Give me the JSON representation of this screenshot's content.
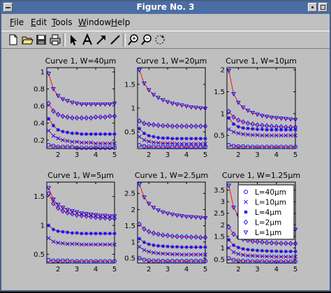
{
  "window": {
    "title": "Figure No. 3"
  },
  "menu": [
    {
      "label": "File",
      "underline": "F"
    },
    {
      "label": "Edit",
      "underline": "E"
    },
    {
      "label": "Tools",
      "underline": "T"
    },
    {
      "label": "Window",
      "underline": "W"
    },
    {
      "label": "Help",
      "underline": "H"
    }
  ],
  "toolbar": [
    "new-file-icon",
    "open-folder-icon",
    "save-icon",
    "print-icon",
    "pointer-arrow-icon",
    "text-icon",
    "arrow-icon",
    "line-icon",
    "zoom-in-icon",
    "zoom-out-icon",
    "rotate-icon"
  ],
  "colors": {
    "fit_line": "#ff0000",
    "markers": "#0000ff",
    "background": "#bfbfbf"
  },
  "legend": {
    "entries": [
      {
        "label": "L=40μm",
        "marker": "o"
      },
      {
        "label": "L=10μm",
        "marker": "x"
      },
      {
        "label": "L=4μm",
        "marker": "*"
      },
      {
        "label": "L=2μm",
        "marker": "diamond"
      },
      {
        "label": "L=1μm",
        "marker": "triangle-down"
      }
    ],
    "placement": "top-right"
  },
  "chart_data": [
    {
      "type": "line",
      "title": "Curve 1, W=40μm",
      "xlim": [
        1.4,
        5
      ],
      "ylim": [
        0.1,
        1.05
      ],
      "xticks": [
        2,
        3,
        4,
        5
      ],
      "yticks": [
        0.2,
        0.4,
        0.6,
        0.8,
        1
      ],
      "ytick_labels": [
        "0.2",
        "0.4",
        "0.6",
        "0.8",
        "1"
      ],
      "x": [
        1.5,
        1.75,
        2,
        2.25,
        2.5,
        2.75,
        3,
        3.25,
        3.5,
        3.75,
        4,
        4.25,
        4.5,
        4.75,
        5
      ],
      "series": [
        {
          "name": "L=40μm",
          "values": [
            0.14,
            0.13,
            0.12,
            0.12,
            0.12,
            0.12,
            0.11,
            0.11,
            0.11,
            0.11,
            0.11,
            0.11,
            0.11,
            0.11,
            0.11
          ]
        },
        {
          "name": "L=10μm",
          "values": [
            0.31,
            0.25,
            0.22,
            0.2,
            0.19,
            0.18,
            0.18,
            0.17,
            0.17,
            0.17,
            0.16,
            0.16,
            0.16,
            0.16,
            0.16
          ]
        },
        {
          "name": "L=4μm",
          "values": [
            0.45,
            0.37,
            0.32,
            0.3,
            0.29,
            0.28,
            0.28,
            0.27,
            0.27,
            0.27,
            0.27,
            0.27,
            0.27,
            0.27,
            0.27
          ]
        },
        {
          "name": "L=2μm",
          "values": [
            0.63,
            0.54,
            0.5,
            0.48,
            0.47,
            0.46,
            0.46,
            0.46,
            0.46,
            0.46,
            0.47,
            0.47,
            0.47,
            0.48,
            0.48
          ]
        },
        {
          "name": "L=1μm",
          "values": [
            0.98,
            0.8,
            0.72,
            0.68,
            0.66,
            0.64,
            0.63,
            0.62,
            0.62,
            0.62,
            0.62,
            0.62,
            0.62,
            0.62,
            0.63
          ]
        }
      ]
    },
    {
      "type": "line",
      "title": "Curve 1, W=20μm",
      "xlim": [
        1.4,
        5
      ],
      "ylim": [
        0.15,
        1.85
      ],
      "xticks": [
        2,
        3,
        4,
        5
      ],
      "yticks": [
        0.5,
        1,
        1.5
      ],
      "ytick_labels": [
        "0.5",
        "1",
        "1.5"
      ],
      "x": [
        1.5,
        1.75,
        2,
        2.25,
        2.5,
        2.75,
        3,
        3.25,
        3.5,
        3.75,
        4,
        4.25,
        4.5,
        4.75,
        5
      ],
      "series": [
        {
          "name": "L=40μm",
          "values": [
            0.22,
            0.2,
            0.19,
            0.19,
            0.18,
            0.18,
            0.18,
            0.18,
            0.18,
            0.18,
            0.18,
            0.18,
            0.18,
            0.18,
            0.18
          ]
        },
        {
          "name": "L=10μm",
          "values": [
            0.4,
            0.33,
            0.3,
            0.28,
            0.27,
            0.26,
            0.26,
            0.26,
            0.25,
            0.25,
            0.25,
            0.25,
            0.25,
            0.25,
            0.25
          ]
        },
        {
          "name": "L=4μm",
          "values": [
            0.57,
            0.47,
            0.42,
            0.4,
            0.38,
            0.37,
            0.37,
            0.36,
            0.36,
            0.36,
            0.36,
            0.36,
            0.36,
            0.36,
            0.36
          ]
        },
        {
          "name": "L=2μm",
          "values": [
            0.73,
            0.68,
            0.66,
            0.65,
            0.64,
            0.63,
            0.63,
            0.62,
            0.62,
            0.62,
            0.62,
            0.62,
            0.62,
            0.62,
            0.62
          ]
        },
        {
          "name": "L=1μm",
          "values": [
            1.8,
            1.52,
            1.38,
            1.28,
            1.22,
            1.17,
            1.13,
            1.1,
            1.08,
            1.06,
            1.04,
            1.02,
            1.01,
            1.0,
            0.99
          ]
        }
      ]
    },
    {
      "type": "line",
      "title": "Curve 1, W=10μm",
      "xlim": [
        1.4,
        5
      ],
      "ylim": [
        0.2,
        2.05
      ],
      "xticks": [
        2,
        3,
        4,
        5
      ],
      "yticks": [
        0.5,
        1,
        1.5,
        2
      ],
      "ytick_labels": [
        "0.5",
        "1",
        "1.5",
        "2"
      ],
      "x": [
        1.5,
        1.75,
        2,
        2.25,
        2.5,
        2.75,
        3,
        3.25,
        3.5,
        3.75,
        4,
        4.25,
        4.5,
        4.75,
        5
      ],
      "series": [
        {
          "name": "L=40μm",
          "values": [
            0.28,
            0.26,
            0.25,
            0.25,
            0.24,
            0.24,
            0.24,
            0.24,
            0.24,
            0.24,
            0.24,
            0.24,
            0.24,
            0.24,
            0.24
          ]
        },
        {
          "name": "L=10μm",
          "values": [
            0.64,
            0.58,
            0.55,
            0.53,
            0.52,
            0.51,
            0.51,
            0.5,
            0.5,
            0.5,
            0.5,
            0.5,
            0.5,
            0.5,
            0.5
          ]
        },
        {
          "name": "L=4μm",
          "values": [
            0.9,
            0.76,
            0.7,
            0.67,
            0.66,
            0.65,
            0.64,
            0.64,
            0.63,
            0.63,
            0.63,
            0.63,
            0.63,
            0.63,
            0.63
          ]
        },
        {
          "name": "L=2μm",
          "values": [
            1.05,
            0.92,
            0.85,
            0.81,
            0.78,
            0.76,
            0.74,
            0.73,
            0.72,
            0.71,
            0.7,
            0.7,
            0.69,
            0.69,
            0.69
          ]
        },
        {
          "name": "L=1μm",
          "values": [
            1.98,
            1.45,
            1.25,
            1.14,
            1.07,
            1.02,
            0.98,
            0.95,
            0.93,
            0.91,
            0.9,
            0.89,
            0.88,
            0.87,
            0.86
          ]
        }
      ]
    },
    {
      "type": "line",
      "title": "Curve 1, W=5μm",
      "xlim": [
        1.4,
        5
      ],
      "ylim": [
        0.35,
        1.75
      ],
      "xticks": [
        2,
        3,
        4,
        5
      ],
      "yticks": [
        0.5,
        1,
        1.5
      ],
      "ytick_labels": [
        "0.5",
        "1",
        "1.5"
      ],
      "x": [
        1.5,
        1.75,
        2,
        2.25,
        2.5,
        2.75,
        3,
        3.25,
        3.5,
        3.75,
        4,
        4.25,
        4.5,
        4.75,
        5
      ],
      "series": [
        {
          "name": "L=40μm",
          "values": [
            0.4,
            0.39,
            0.39,
            0.39,
            0.39,
            0.38,
            0.38,
            0.38,
            0.38,
            0.38,
            0.38,
            0.38,
            0.38,
            0.38,
            0.38
          ]
        },
        {
          "name": "L=10μm",
          "values": [
            0.78,
            0.72,
            0.7,
            0.69,
            0.68,
            0.68,
            0.68,
            0.67,
            0.67,
            0.67,
            0.67,
            0.67,
            0.67,
            0.67,
            0.67
          ]
        },
        {
          "name": "L=4μm",
          "values": [
            1.0,
            0.93,
            0.9,
            0.89,
            0.88,
            0.87,
            0.87,
            0.86,
            0.86,
            0.86,
            0.86,
            0.86,
            0.86,
            0.86,
            0.86
          ]
        },
        {
          "name": "L=2μm",
          "values": [
            1.55,
            1.38,
            1.3,
            1.25,
            1.22,
            1.2,
            1.18,
            1.17,
            1.16,
            1.15,
            1.14,
            1.13,
            1.13,
            1.12,
            1.12
          ]
        },
        {
          "name": "L=1μm",
          "values": [
            1.65,
            1.45,
            1.36,
            1.31,
            1.27,
            1.25,
            1.23,
            1.21,
            1.2,
            1.19,
            1.18,
            1.17,
            1.17,
            1.16,
            1.16
          ]
        }
      ]
    },
    {
      "type": "line",
      "title": "Curve 1, W=2.5μm",
      "xlim": [
        1.4,
        5
      ],
      "ylim": [
        0.35,
        2.85
      ],
      "xticks": [
        2,
        3,
        4,
        5
      ],
      "yticks": [
        0.5,
        1,
        1.5,
        2,
        2.5
      ],
      "ytick_labels": [
        "0.5",
        "1",
        "1.5",
        "2",
        "2.5"
      ],
      "x": [
        1.5,
        1.75,
        2,
        2.25,
        2.5,
        2.75,
        3,
        3.25,
        3.5,
        3.75,
        4,
        4.25,
        4.5,
        4.75,
        5
      ],
      "series": [
        {
          "name": "L=40μm",
          "values": [
            0.5,
            0.45,
            0.43,
            0.42,
            0.42,
            0.41,
            0.41,
            0.41,
            0.41,
            0.41,
            0.41,
            0.41,
            0.41,
            0.41,
            0.41
          ]
        },
        {
          "name": "L=10μm",
          "values": [
            0.85,
            0.75,
            0.7,
            0.67,
            0.65,
            0.64,
            0.63,
            0.62,
            0.62,
            0.61,
            0.61,
            0.61,
            0.61,
            0.61,
            0.61
          ]
        },
        {
          "name": "L=4μm",
          "values": [
            1.1,
            0.99,
            0.93,
            0.9,
            0.88,
            0.87,
            0.86,
            0.85,
            0.85,
            0.84,
            0.84,
            0.84,
            0.84,
            0.84,
            0.84
          ]
        },
        {
          "name": "L=2μm",
          "values": [
            1.55,
            1.4,
            1.32,
            1.27,
            1.24,
            1.21,
            1.2,
            1.18,
            1.17,
            1.16,
            1.16,
            1.15,
            1.15,
            1.14,
            1.14
          ]
        },
        {
          "name": "L=1μm",
          "values": [
            2.78,
            2.38,
            2.18,
            2.06,
            1.98,
            1.92,
            1.88,
            1.85,
            1.82,
            1.8,
            1.78,
            1.77,
            1.76,
            1.75,
            1.74
          ]
        }
      ]
    },
    {
      "type": "line",
      "title": "Curve 1, W=1.25μm",
      "xlim": [
        1.4,
        5
      ],
      "ylim": [
        0.35,
        3.85
      ],
      "xticks": [
        2,
        3,
        4,
        5
      ],
      "yticks": [
        0.5,
        1,
        1.5,
        2,
        2.5,
        3,
        3.5
      ],
      "ytick_labels": [
        "0.5",
        "1",
        "1.5",
        "2",
        "2.5",
        "3",
        "3.5"
      ],
      "x": [
        1.5,
        1.75,
        2,
        2.25,
        2.5,
        2.75,
        3,
        3.25,
        3.5,
        3.75,
        4,
        4.25,
        4.5,
        4.75,
        5
      ],
      "series": [
        {
          "name": "L=40μm",
          "values": [
            0.55,
            0.48,
            0.45,
            0.44,
            0.43,
            0.42,
            0.42,
            0.42,
            0.41,
            0.41,
            0.41,
            0.41,
            0.41,
            0.41,
            0.41
          ]
        },
        {
          "name": "L=10μm",
          "values": [
            1.0,
            0.82,
            0.74,
            0.7,
            0.67,
            0.66,
            0.65,
            0.64,
            0.63,
            0.63,
            0.62,
            0.62,
            0.62,
            0.62,
            0.62
          ]
        },
        {
          "name": "L=4μm",
          "values": [
            1.35,
            1.12,
            1.02,
            0.96,
            0.93,
            0.91,
            0.89,
            0.88,
            0.87,
            0.86,
            0.86,
            0.85,
            0.85,
            0.85,
            0.85
          ]
        },
        {
          "name": "L=2μm",
          "values": [
            1.9,
            1.6,
            1.46,
            1.38,
            1.33,
            1.29,
            1.27,
            1.25,
            1.23,
            1.22,
            1.21,
            1.2,
            1.2,
            1.19,
            1.19
          ]
        },
        {
          "name": "L=1μm",
          "values": [
            3.7,
            2.75,
            2.4,
            2.22,
            2.1,
            2.02,
            1.96,
            1.92,
            1.89,
            1.86,
            1.84,
            1.82,
            1.81,
            1.8,
            1.79
          ]
        }
      ]
    }
  ]
}
